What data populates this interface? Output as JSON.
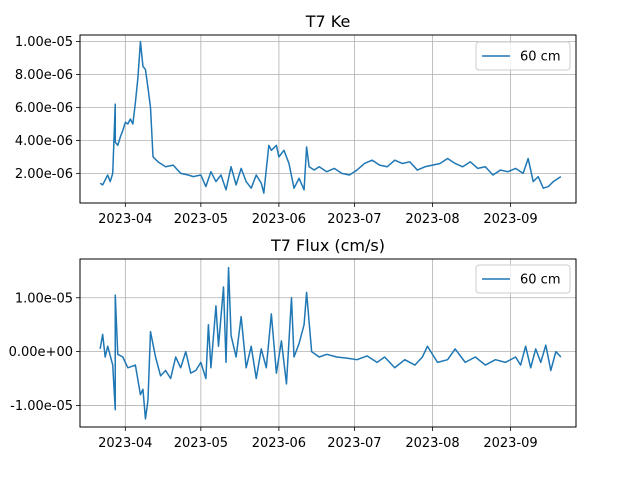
{
  "chart_data": [
    {
      "type": "line",
      "title": "T7 Ke",
      "xlabel": "",
      "ylabel": "",
      "x_type": "date",
      "xlim": [
        "2023-03-14",
        "2023-09-27"
      ],
      "ylim": [
        2e-07,
        1.04e-05
      ],
      "xticks": [
        "2023-04-01",
        "2023-05-01",
        "2023-06-01",
        "2023-07-01",
        "2023-08-01",
        "2023-09-01"
      ],
      "xtick_labels": [
        "2023-04",
        "2023-05",
        "2023-06",
        "2023-07",
        "2023-08",
        "2023-09"
      ],
      "yticks": [
        2e-06,
        4e-06,
        6e-06,
        8e-06,
        1e-05
      ],
      "ytick_labels": [
        "2.00e-06",
        "4.00e-06",
        "6.00e-06",
        "8.00e-06",
        "1.00e-05"
      ],
      "grid": true,
      "legend_position": "top-right",
      "series": [
        {
          "name": "60 cm",
          "color": "#1f77b4",
          "x": [
            "2023-03-22",
            "2023-03-23",
            "2023-03-24",
            "2023-03-25",
            "2023-03-26",
            "2023-03-27",
            "2023-03-28",
            "2023-03-28",
            "2023-03-29",
            "2023-03-30",
            "2023-03-31",
            "2023-04-01",
            "2023-04-02",
            "2023-04-03",
            "2023-04-04",
            "2023-04-05",
            "2023-04-06",
            "2023-04-07",
            "2023-04-08",
            "2023-04-09",
            "2023-04-10",
            "2023-04-11",
            "2023-04-12",
            "2023-04-14",
            "2023-04-17",
            "2023-04-20",
            "2023-04-23",
            "2023-04-26",
            "2023-04-28",
            "2023-05-01",
            "2023-05-03",
            "2023-05-05",
            "2023-05-07",
            "2023-05-09",
            "2023-05-11",
            "2023-05-13",
            "2023-05-15",
            "2023-05-17",
            "2023-05-19",
            "2023-05-21",
            "2023-05-23",
            "2023-05-25",
            "2023-05-26",
            "2023-05-28",
            "2023-05-29",
            "2023-05-31",
            "2023-06-01",
            "2023-06-03",
            "2023-06-05",
            "2023-06-07",
            "2023-06-09",
            "2023-06-11",
            "2023-06-12",
            "2023-06-13",
            "2023-06-15",
            "2023-06-17",
            "2023-06-20",
            "2023-06-23",
            "2023-06-26",
            "2023-06-29",
            "2023-07-02",
            "2023-07-05",
            "2023-07-08",
            "2023-07-11",
            "2023-07-14",
            "2023-07-17",
            "2023-07-20",
            "2023-07-23",
            "2023-07-26",
            "2023-07-29",
            "2023-08-01",
            "2023-08-04",
            "2023-08-07",
            "2023-08-10",
            "2023-08-13",
            "2023-08-16",
            "2023-08-19",
            "2023-08-22",
            "2023-08-25",
            "2023-08-28",
            "2023-08-31",
            "2023-09-03",
            "2023-09-06",
            "2023-09-08",
            "2023-09-10",
            "2023-09-12",
            "2023-09-14",
            "2023-09-16",
            "2023-09-18",
            "2023-09-20",
            "2023-09-21"
          ],
          "values": [
            1.4e-06,
            1.3e-06,
            1.6e-06,
            1.9e-06,
            1.5e-06,
            2e-06,
            6.2e-06,
            3.9e-06,
            3.7e-06,
            4.2e-06,
            4.6e-06,
            5.1e-06,
            5e-06,
            5.3e-06,
            5e-06,
            6.3e-06,
            7.8e-06,
            1e-05,
            8.5e-06,
            8.3e-06,
            7.2e-06,
            6e-06,
            3e-06,
            2.7e-06,
            2.4e-06,
            2.5e-06,
            2e-06,
            1.9e-06,
            1.8e-06,
            1.9e-06,
            1.2e-06,
            2.1e-06,
            1.5e-06,
            1.9e-06,
            1e-06,
            2.4e-06,
            1.3e-06,
            2.3e-06,
            1.5e-06,
            1.1e-06,
            1.9e-06,
            1.4e-06,
            8e-07,
            3.7e-06,
            3.4e-06,
            3.7e-06,
            3e-06,
            3.4e-06,
            2.6e-06,
            1.1e-06,
            1.7e-06,
            1e-06,
            3.6e-06,
            2.4e-06,
            2.2e-06,
            2.4e-06,
            2.1e-06,
            2.3e-06,
            2e-06,
            1.9e-06,
            2.2e-06,
            2.6e-06,
            2.8e-06,
            2.5e-06,
            2.4e-06,
            2.8e-06,
            2.6e-06,
            2.7e-06,
            2.2e-06,
            2.4e-06,
            2.5e-06,
            2.6e-06,
            2.9e-06,
            2.6e-06,
            2.4e-06,
            2.7e-06,
            2.3e-06,
            2.4e-06,
            1.9e-06,
            2.2e-06,
            2.1e-06,
            2.3e-06,
            2e-06,
            2.9e-06,
            1.5e-06,
            1.8e-06,
            1.1e-06,
            1.2e-06,
            1.5e-06,
            1.7e-06,
            1.8e-06
          ]
        }
      ]
    },
    {
      "type": "line",
      "title": "T7 Flux (cm/s)",
      "xlabel": "",
      "ylabel": "",
      "x_type": "date",
      "xlim": [
        "2023-03-14",
        "2023-09-27"
      ],
      "ylim": [
        -1.4e-05,
        1.72e-05
      ],
      "xticks": [
        "2023-04-01",
        "2023-05-01",
        "2023-06-01",
        "2023-07-01",
        "2023-08-01",
        "2023-09-01"
      ],
      "xtick_labels": [
        "2023-04",
        "2023-05",
        "2023-06",
        "2023-07",
        "2023-08",
        "2023-09"
      ],
      "yticks": [
        -1e-05,
        0,
        1e-05
      ],
      "ytick_labels": [
        "-1.00e-05",
        "0.00e+00",
        "1.00e-05"
      ],
      "grid": true,
      "legend_position": "top-right",
      "series": [
        {
          "name": "60 cm",
          "color": "#1f77b4",
          "x": [
            "2023-03-22",
            "2023-03-23",
            "2023-03-24",
            "2023-03-25",
            "2023-03-27",
            "2023-03-28",
            "2023-03-28",
            "2023-03-29",
            "2023-03-31",
            "2023-04-02",
            "2023-04-05",
            "2023-04-07",
            "2023-04-08",
            "2023-04-09",
            "2023-04-10",
            "2023-04-11",
            "2023-04-13",
            "2023-04-15",
            "2023-04-17",
            "2023-04-19",
            "2023-04-21",
            "2023-04-23",
            "2023-04-25",
            "2023-04-27",
            "2023-04-29",
            "2023-05-01",
            "2023-05-03",
            "2023-05-04",
            "2023-05-05",
            "2023-05-07",
            "2023-05-08",
            "2023-05-10",
            "2023-05-11",
            "2023-05-12",
            "2023-05-13",
            "2023-05-15",
            "2023-05-17",
            "2023-05-19",
            "2023-05-21",
            "2023-05-23",
            "2023-05-25",
            "2023-05-27",
            "2023-05-29",
            "2023-05-31",
            "2023-06-02",
            "2023-06-04",
            "2023-06-06",
            "2023-06-07",
            "2023-06-09",
            "2023-06-11",
            "2023-06-12",
            "2023-06-14",
            "2023-06-17",
            "2023-06-20",
            "2023-06-24",
            "2023-06-28",
            "2023-07-02",
            "2023-07-06",
            "2023-07-10",
            "2023-07-13",
            "2023-07-17",
            "2023-07-21",
            "2023-07-25",
            "2023-07-28",
            "2023-07-30",
            "2023-08-03",
            "2023-08-07",
            "2023-08-10",
            "2023-08-14",
            "2023-08-18",
            "2023-08-22",
            "2023-08-26",
            "2023-08-30",
            "2023-09-03",
            "2023-09-05",
            "2023-09-07",
            "2023-09-09",
            "2023-09-11",
            "2023-09-13",
            "2023-09-15",
            "2023-09-17",
            "2023-09-19",
            "2023-09-21"
          ],
          "values": [
            5e-07,
            3.2e-06,
            -1e-06,
            1e-06,
            -2.5e-06,
            -1.08e-05,
            1.05e-05,
            -5e-07,
            -1e-06,
            -3e-06,
            -2.5e-06,
            -8e-06,
            -7e-06,
            -1.25e-05,
            -9e-06,
            3.7e-06,
            -1e-06,
            -4.5e-06,
            -3.5e-06,
            -5e-06,
            -1e-06,
            -3e-06,
            0.0,
            -4e-06,
            -3.5e-06,
            -2e-06,
            -5e-06,
            5e-06,
            -3e-06,
            8.5e-06,
            1e-06,
            1.2e-05,
            -2e-06,
            1.56e-05,
            3e-06,
            -1e-06,
            6.5e-06,
            -3e-06,
            1e-06,
            -5e-06,
            5e-07,
            -3e-06,
            7e-06,
            -4e-06,
            2e-06,
            -6e-06,
            1e-05,
            -1e-06,
            1.5e-06,
            5e-06,
            1.1e-05,
            0.0,
            -1e-06,
            -5e-07,
            -1e-06,
            -1.2e-06,
            -1.5e-06,
            -8e-07,
            -2e-06,
            -1e-06,
            -3e-06,
            -1.5e-06,
            -2.5e-06,
            -1e-06,
            1e-06,
            -2e-06,
            -1.5e-06,
            5e-07,
            -2e-06,
            -1e-06,
            -2.5e-06,
            -1.5e-06,
            -2e-06,
            -1e-06,
            -2.5e-06,
            1e-06,
            -3e-06,
            5e-07,
            -2e-06,
            1.2e-06,
            -3.5e-06,
            0.0,
            -1e-06
          ]
        }
      ]
    }
  ]
}
